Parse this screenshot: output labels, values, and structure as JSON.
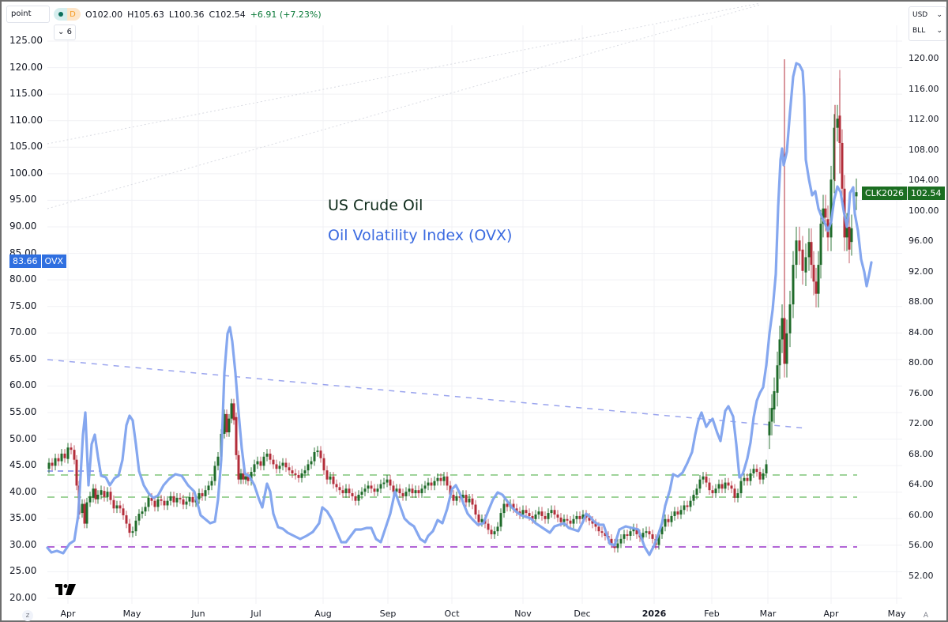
{
  "toolbar": {
    "scale_mode": "point",
    "interval": "D",
    "open": "O102.00",
    "high": "H105.63",
    "low": "L100.36",
    "close": "C102.54",
    "change": "+6.91 (+7.23%)",
    "collapse_label": "⌄ 6",
    "currency": "USD",
    "unit": "BLL",
    "chevron": "⌄"
  },
  "annotations": {
    "title_crude": "US Crude Oil",
    "title_ovx": "Oil Volatility Index (OVX)"
  },
  "price_tags": {
    "ovx_value": "83.66",
    "ovx_label": "OVX",
    "crude_symbol": "CLK2026",
    "crude_value": "102.54"
  },
  "buttons": {
    "z": "z",
    "a": "A",
    "logo": "TV"
  },
  "colors": {
    "up_candle": "#1f6b2a",
    "down_candle": "#b32d3a",
    "ovx_line": "#7ea2ee",
    "trend_dashed": "#9aa4ee",
    "support_green": "#9fd39a",
    "support_purple": "#b266d6",
    "crude_tag": "#1b6e21",
    "ovx_tag": "#2f6fe0"
  },
  "chart_data": {
    "type": "candlestick+line",
    "title": "US Crude Oil vs Oil Volatility Index (OVX)",
    "x_ticks": [
      "Apr",
      "May",
      "Jun",
      "Jul",
      "Aug",
      "Sep",
      "Oct",
      "Nov",
      "Dec",
      "2026",
      "Feb",
      "Mar",
      "Apr",
      "May"
    ],
    "left_axis": {
      "label": "OVX",
      "ticks": [
        "125.00",
        "120.00",
        "115.00",
        "110.00",
        "105.00",
        "100.00",
        "95.00",
        "90.00",
        "85.00",
        "80.00",
        "75.00",
        "70.00",
        "65.00",
        "60.00",
        "55.00",
        "50.00",
        "45.00",
        "40.00",
        "35.00",
        "30.00",
        "25.00",
        "20.00"
      ],
      "range": [
        20,
        125
      ]
    },
    "right_axis": {
      "label": "USD / BLL",
      "ticks": [
        "120.00",
        "116.00",
        "112.00",
        "108.00",
        "104.00",
        "100.00",
        "96.00",
        "92.00",
        "88.00",
        "84.00",
        "80.00",
        "76.00",
        "72.00",
        "68.00",
        "64.00",
        "60.00",
        "56.00",
        "52.00"
      ],
      "range": [
        52,
        120
      ]
    },
    "series": [
      {
        "name": "US Crude Oil (CLK2026)",
        "axis": "right",
        "kind": "candlestick",
        "approx_closes_by_month": {
          "Apr": 102.54,
          "May": 62,
          "Jun": 64,
          "Jul": 67,
          "Aug": 65,
          "Sep": 63,
          "Oct": 63,
          "Nov": 60,
          "Dec": 58,
          "Jan": 58,
          "Feb": 64,
          "Mar": 92
        },
        "last": {
          "open": 102.0,
          "high": 105.63,
          "low": 100.36,
          "close": 102.54,
          "change": 6.91,
          "change_pct": 7.23
        }
      },
      {
        "name": "Oil Volatility Index (OVX)",
        "axis": "left",
        "kind": "line",
        "approx_values_by_month": {
          "Apr": 95,
          "Apr-mid": 54,
          "May": 53,
          "May-end": 42,
          "Jun": 40,
          "Jun-mid": 71,
          "Jul": 40,
          "Jul-mid": 32,
          "Aug": 31,
          "Sep": 34,
          "Oct": 36,
          "Oct-end": 40,
          "Nov": 35,
          "Dec": 32,
          "Dec-end": 29,
          "2026": 32,
          "Jan-end": 55,
          "Feb": 50,
          "Feb-mid": 54,
          "Feb-end": 45,
          "Mar": 80,
          "Mar-peak": 120,
          "Mar-end": 88,
          "Apr-low": 79,
          "last": 83.66
        },
        "last": 83.66
      }
    ],
    "reference_lines": [
      {
        "name": "OVX downtrend",
        "style": "dashed",
        "from": {
          "x": "Mar-2025",
          "ovx": 65
        },
        "to": {
          "x": "Mar-2026",
          "ovx": 52
        }
      },
      {
        "name": "Support 1",
        "style": "dashed-green",
        "crude": 65.0
      },
      {
        "name": "Support 2",
        "style": "dashed-green",
        "crude": 62.5
      },
      {
        "name": "Long-term floor",
        "style": "dashed-purple",
        "crude": 56.0
      }
    ],
    "legend": [],
    "grid": true
  }
}
